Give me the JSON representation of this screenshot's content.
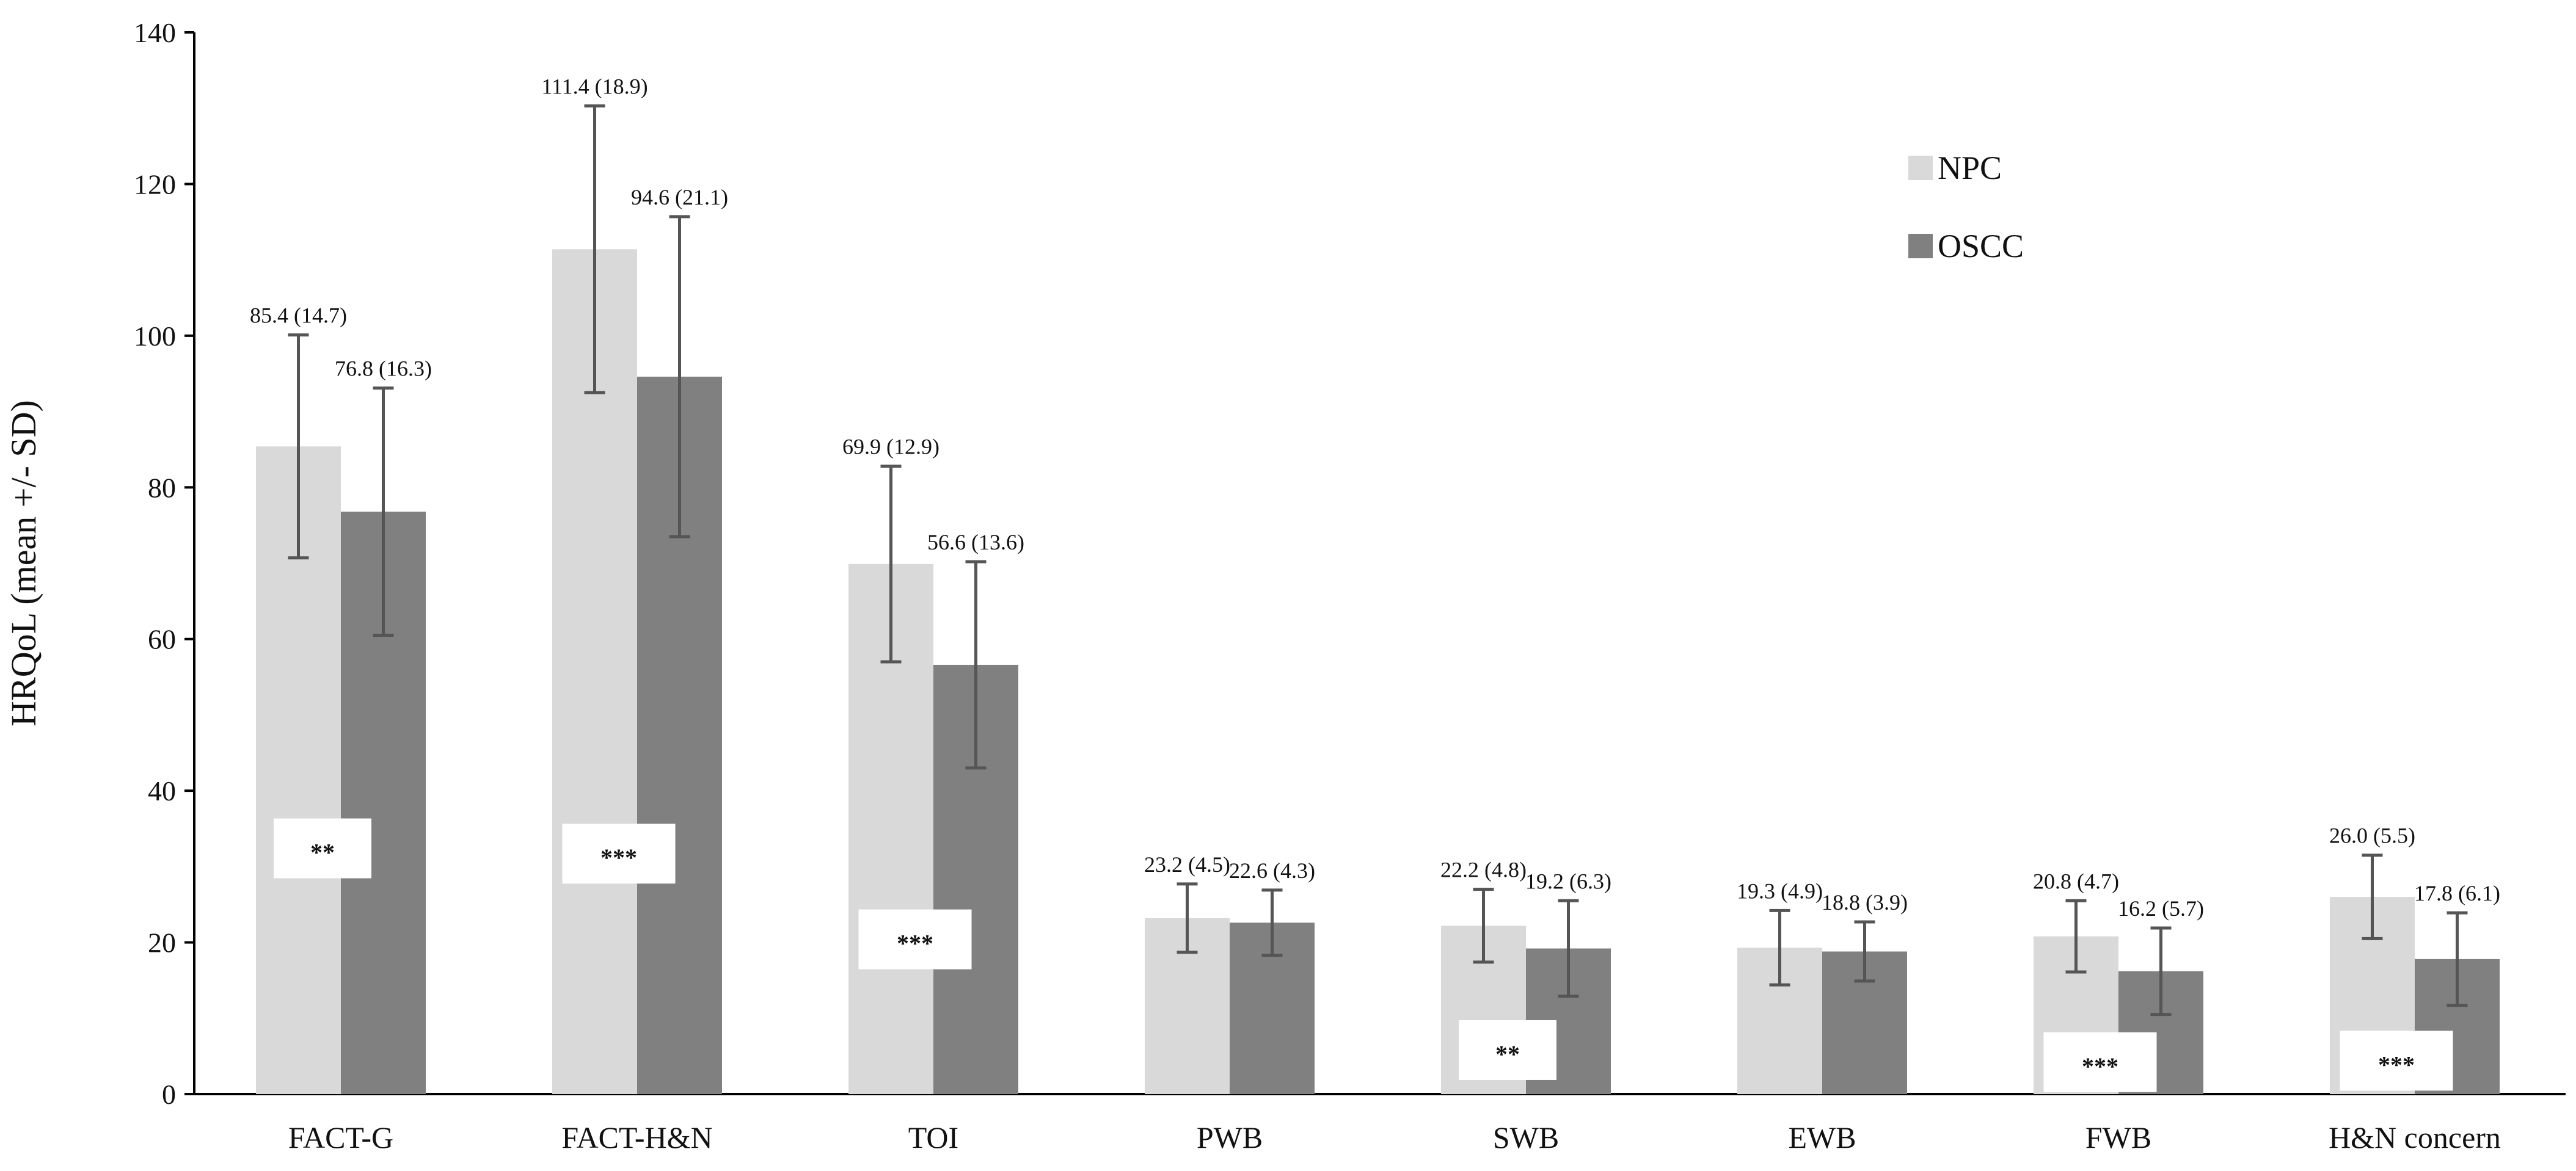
{
  "chart_data": {
    "type": "bar",
    "title": "",
    "xlabel": "",
    "ylabel": "HRQoL (mean +/- SD)",
    "ylim": [
      0,
      140
    ],
    "yticks": [
      0,
      20,
      40,
      60,
      80,
      100,
      120,
      140
    ],
    "grid": false,
    "legend_position": "top-right",
    "categories": [
      "FACT-G",
      "FACT-H&N",
      "TOI",
      "PWB",
      "SWB",
      "EWB",
      "FWB",
      "H&N concern"
    ],
    "series": [
      {
        "name": "NPC",
        "color": "#d9d9d9",
        "values": [
          85.4,
          111.4,
          69.9,
          23.2,
          22.2,
          19.3,
          20.8,
          26.0
        ],
        "sd": [
          14.7,
          18.9,
          12.9,
          4.5,
          4.8,
          4.9,
          4.7,
          5.5
        ],
        "labels": [
          "85.4 (14.7)",
          "111.4 (18.9)",
          "69.9 (12.9)",
          "23.2 (4.5)",
          "22.2 (4.8)",
          "19.3 (4.9)",
          "20.8 (4.7)",
          "26.0 (5.5)"
        ]
      },
      {
        "name": "OSCC",
        "color": "#808080",
        "values": [
          76.8,
          94.6,
          56.6,
          22.6,
          19.2,
          18.8,
          16.2,
          17.8
        ],
        "sd": [
          16.3,
          21.1,
          13.6,
          4.3,
          6.3,
          3.9,
          5.7,
          6.1
        ],
        "labels": [
          "76.8 (16.3)",
          "94.6 (21.1)",
          "56.6 (13.6)",
          "22.6 (4.3)",
          "19.2 (6.3)",
          "18.8 (3.9)",
          "16.2 (5.7)",
          "17.8 (6.1)"
        ]
      }
    ],
    "significance": [
      {
        "category": "FACT-G",
        "label": "**",
        "y": 32.4
      },
      {
        "category": "FACT-H&N",
        "label": "***",
        "y": 31.7
      },
      {
        "category": "TOI",
        "label": "***",
        "y": 20.4
      },
      {
        "category": "SWB",
        "label": "**",
        "y": 5.8
      },
      {
        "category": "FWB",
        "label": "***",
        "y": 4.2
      },
      {
        "category": "H&N concern",
        "label": "***",
        "y": 4.4
      }
    ]
  }
}
